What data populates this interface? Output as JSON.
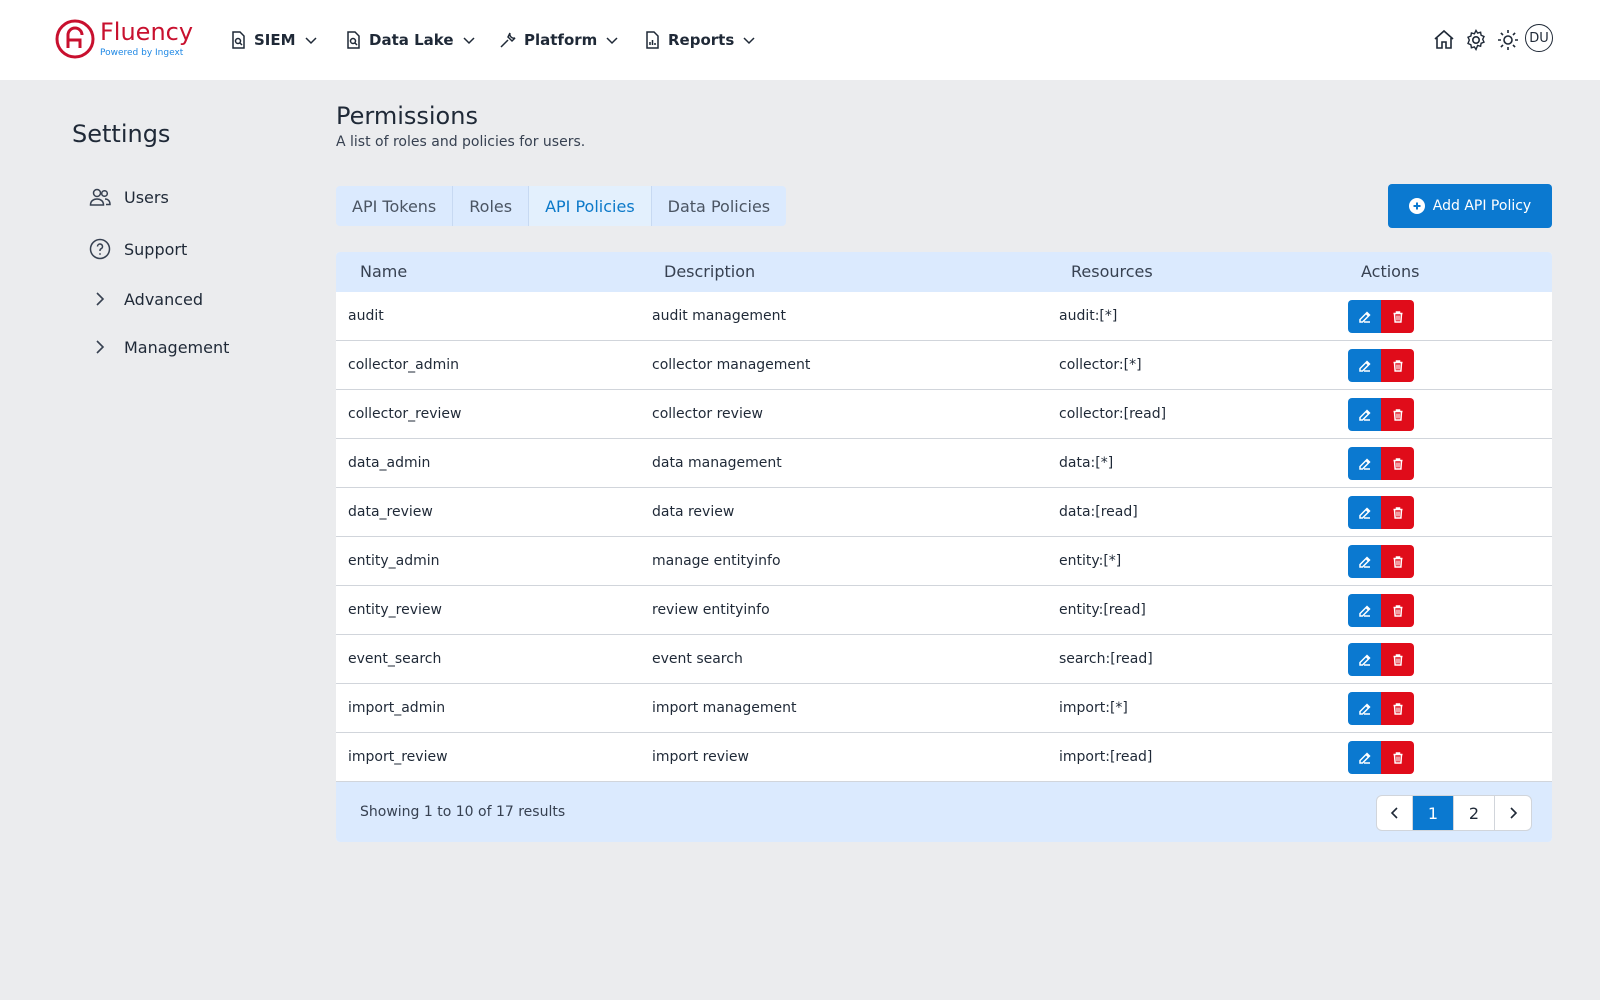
{
  "header": {
    "logo_text": "Fluency",
    "logo_sub": "Powered by Ingext",
    "nav": [
      {
        "label": "SIEM",
        "icon": "document-search-icon"
      },
      {
        "label": "Data Lake",
        "icon": "document-search-icon"
      },
      {
        "label": "Platform",
        "icon": "wrench-icon"
      },
      {
        "label": "Reports",
        "icon": "document-chart-icon"
      }
    ],
    "icons": [
      "home-icon",
      "gear-icon",
      "sun-icon"
    ],
    "avatar": "DU"
  },
  "sidebar": {
    "title": "Settings",
    "items": [
      {
        "label": "Users",
        "icon": "users-icon"
      },
      {
        "label": "Support",
        "icon": "question-circle-icon"
      },
      {
        "label": "Advanced",
        "icon": "chevron-right-icon"
      },
      {
        "label": "Management",
        "icon": "chevron-right-icon"
      }
    ]
  },
  "main": {
    "title": "Permissions",
    "subtitle": "A list of roles and policies for users.",
    "tabs": [
      {
        "label": "API Tokens",
        "active": false
      },
      {
        "label": "Roles",
        "active": false
      },
      {
        "label": "API Policies",
        "active": true
      },
      {
        "label": "Data Policies",
        "active": false
      }
    ],
    "add_button": "Add API Policy",
    "table": {
      "columns": [
        "Name",
        "Description",
        "Resources",
        "Actions"
      ],
      "rows": [
        {
          "name": "audit",
          "description": "audit management",
          "resources": "audit:[*]"
        },
        {
          "name": "collector_admin",
          "description": "collector management",
          "resources": "collector:[*]"
        },
        {
          "name": "collector_review",
          "description": "collector review",
          "resources": "collector:[read]"
        },
        {
          "name": "data_admin",
          "description": "data management",
          "resources": "data:[*]"
        },
        {
          "name": "data_review",
          "description": "data review",
          "resources": "data:[read]"
        },
        {
          "name": "entity_admin",
          "description": "manage entityinfo",
          "resources": "entity:[*]"
        },
        {
          "name": "entity_review",
          "description": "review entityinfo",
          "resources": "entity:[read]"
        },
        {
          "name": "event_search",
          "description": "event search",
          "resources": "search:[read]"
        },
        {
          "name": "import_admin",
          "description": "import management",
          "resources": "import:[*]"
        },
        {
          "name": "import_review",
          "description": "import review",
          "resources": "import:[read]"
        }
      ]
    },
    "footer": {
      "showing": "Showing 1 to 10 of 17 results",
      "pages": [
        "1",
        "2"
      ],
      "current_page": "1"
    }
  },
  "colors": {
    "accent": "#0b79d0",
    "danger": "#e00c1a",
    "brand": "#c8102e",
    "table_header": "#dbeafe"
  }
}
